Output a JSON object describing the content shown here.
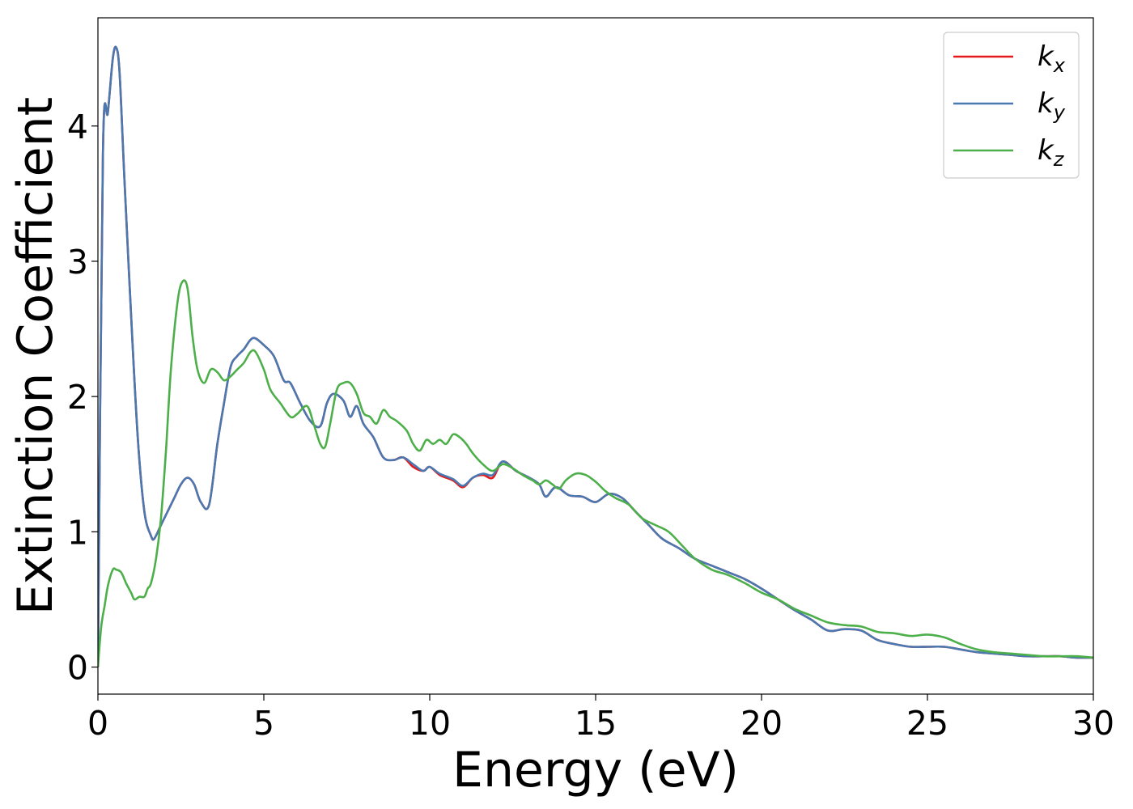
{
  "chart_data": {
    "type": "line",
    "xlabel": "Energy (eV)",
    "ylabel": "Extinction Coefficient",
    "xlim": [
      0,
      30
    ],
    "ylim": [
      -0.2,
      4.8
    ],
    "xticks": [
      "0",
      "5",
      "10",
      "15",
      "20",
      "25",
      "30"
    ],
    "yticks": [
      "0",
      "1",
      "2",
      "3",
      "4"
    ],
    "grid": false,
    "legend_position": "top-right",
    "series": [
      {
        "name": "k",
        "subscript": "x",
        "color": "#e41a1c",
        "x": [
          0,
          0.15,
          0.3,
          0.45,
          0.55,
          0.65,
          0.8,
          1.0,
          1.2,
          1.4,
          1.6,
          1.7,
          1.9,
          2.1,
          2.3,
          2.5,
          2.7,
          2.9,
          3.1,
          3.35,
          3.6,
          3.8,
          4.0,
          4.2,
          4.4,
          4.6,
          4.75,
          5.0,
          5.3,
          5.6,
          5.8,
          6.1,
          6.4,
          6.7,
          6.9,
          7.1,
          7.4,
          7.6,
          7.8,
          8.0,
          8.3,
          8.6,
          8.9,
          9.2,
          9.5,
          9.8,
          10.0,
          10.3,
          10.7,
          11.0,
          11.3,
          11.6,
          11.9,
          12.2,
          12.6,
          13.0,
          13.3,
          13.5,
          13.8,
          14.2,
          14.6,
          15.0,
          15.4,
          15.8,
          16.2,
          16.6,
          17.0,
          17.5,
          18.0,
          18.5,
          19.0,
          19.5,
          20.0,
          20.5,
          21.0,
          21.5,
          22.0,
          22.5,
          23.0,
          23.5,
          24.0,
          24.5,
          25.0,
          25.5,
          26.0,
          26.5,
          27.0,
          27.5,
          28.0,
          28.5,
          29.0,
          29.5,
          30.0
        ],
        "y": [
          0,
          3.8,
          4.1,
          4.5,
          4.58,
          4.4,
          3.6,
          2.6,
          1.7,
          1.15,
          0.97,
          0.95,
          1.05,
          1.15,
          1.25,
          1.35,
          1.4,
          1.35,
          1.22,
          1.2,
          1.65,
          1.95,
          2.22,
          2.3,
          2.35,
          2.42,
          2.43,
          2.38,
          2.3,
          2.12,
          2.1,
          1.95,
          1.82,
          1.78,
          1.95,
          2.02,
          1.97,
          1.85,
          1.93,
          1.8,
          1.7,
          1.55,
          1.53,
          1.55,
          1.48,
          1.45,
          1.48,
          1.42,
          1.38,
          1.33,
          1.4,
          1.42,
          1.4,
          1.52,
          1.45,
          1.4,
          1.35,
          1.26,
          1.33,
          1.27,
          1.26,
          1.22,
          1.28,
          1.25,
          1.15,
          1.05,
          0.95,
          0.88,
          0.8,
          0.75,
          0.7,
          0.65,
          0.58,
          0.5,
          0.42,
          0.35,
          0.27,
          0.28,
          0.27,
          0.2,
          0.17,
          0.15,
          0.15,
          0.15,
          0.13,
          0.11,
          0.1,
          0.09,
          0.08,
          0.08,
          0.08,
          0.07,
          0.07
        ]
      },
      {
        "name": "k",
        "subscript": "y",
        "color": "#4a78b0",
        "x": [
          0,
          0.15,
          0.3,
          0.45,
          0.55,
          0.65,
          0.8,
          1.0,
          1.2,
          1.4,
          1.6,
          1.7,
          1.9,
          2.1,
          2.3,
          2.5,
          2.7,
          2.9,
          3.1,
          3.35,
          3.6,
          3.8,
          4.0,
          4.2,
          4.4,
          4.6,
          4.75,
          5.0,
          5.3,
          5.6,
          5.8,
          6.1,
          6.4,
          6.7,
          6.9,
          7.1,
          7.4,
          7.6,
          7.8,
          8.0,
          8.3,
          8.6,
          8.9,
          9.2,
          9.5,
          9.8,
          10.0,
          10.3,
          10.7,
          11.0,
          11.3,
          11.6,
          11.9,
          12.2,
          12.6,
          13.0,
          13.3,
          13.5,
          13.8,
          14.2,
          14.6,
          15.0,
          15.4,
          15.8,
          16.2,
          16.6,
          17.0,
          17.5,
          18.0,
          18.5,
          19.0,
          19.5,
          20.0,
          20.5,
          21.0,
          21.5,
          22.0,
          22.5,
          23.0,
          23.5,
          24.0,
          24.5,
          25.0,
          25.5,
          26.0,
          26.5,
          27.0,
          27.5,
          28.0,
          28.5,
          29.0,
          29.5,
          30.0
        ],
        "y": [
          0,
          3.8,
          4.1,
          4.5,
          4.58,
          4.4,
          3.6,
          2.6,
          1.7,
          1.15,
          0.97,
          0.95,
          1.05,
          1.15,
          1.25,
          1.35,
          1.4,
          1.35,
          1.22,
          1.2,
          1.65,
          1.95,
          2.22,
          2.3,
          2.35,
          2.42,
          2.43,
          2.38,
          2.3,
          2.12,
          2.1,
          1.95,
          1.82,
          1.78,
          1.95,
          2.02,
          1.97,
          1.85,
          1.93,
          1.8,
          1.7,
          1.55,
          1.53,
          1.55,
          1.5,
          1.45,
          1.48,
          1.43,
          1.39,
          1.34,
          1.4,
          1.43,
          1.42,
          1.52,
          1.45,
          1.4,
          1.35,
          1.26,
          1.33,
          1.27,
          1.26,
          1.22,
          1.28,
          1.25,
          1.15,
          1.05,
          0.95,
          0.88,
          0.8,
          0.75,
          0.7,
          0.65,
          0.58,
          0.5,
          0.42,
          0.35,
          0.27,
          0.28,
          0.27,
          0.2,
          0.17,
          0.15,
          0.15,
          0.15,
          0.13,
          0.11,
          0.1,
          0.09,
          0.08,
          0.08,
          0.08,
          0.07,
          0.07
        ]
      },
      {
        "name": "k",
        "subscript": "z",
        "color": "#4daf4a",
        "x": [
          0,
          0.1,
          0.2,
          0.3,
          0.45,
          0.55,
          0.7,
          0.85,
          1.0,
          1.1,
          1.25,
          1.4,
          1.5,
          1.6,
          1.75,
          1.9,
          2.05,
          2.2,
          2.4,
          2.55,
          2.7,
          2.85,
          3.0,
          3.2,
          3.4,
          3.6,
          3.8,
          4.0,
          4.2,
          4.4,
          4.6,
          4.75,
          5.0,
          5.2,
          5.5,
          5.8,
          6.0,
          6.3,
          6.5,
          6.7,
          6.85,
          7.0,
          7.2,
          7.4,
          7.6,
          7.8,
          8.0,
          8.2,
          8.4,
          8.6,
          8.8,
          9.0,
          9.3,
          9.5,
          9.7,
          9.9,
          10.1,
          10.3,
          10.5,
          10.7,
          10.9,
          11.1,
          11.3,
          11.6,
          11.9,
          12.2,
          12.5,
          12.8,
          13.1,
          13.3,
          13.5,
          13.7,
          13.9,
          14.1,
          14.4,
          14.7,
          15.0,
          15.3,
          15.6,
          16.0,
          16.4,
          16.8,
          17.2,
          17.6,
          18.0,
          18.5,
          19.0,
          19.5,
          20.0,
          20.5,
          21.0,
          21.5,
          22.0,
          22.5,
          23.0,
          23.5,
          24.0,
          24.5,
          25.0,
          25.5,
          26.0,
          26.5,
          27.0,
          27.5,
          28.0,
          28.5,
          29.0,
          29.5,
          30.0
        ],
        "y": [
          0,
          0.3,
          0.45,
          0.6,
          0.72,
          0.72,
          0.7,
          0.62,
          0.55,
          0.5,
          0.52,
          0.52,
          0.58,
          0.62,
          0.8,
          1.1,
          1.6,
          2.2,
          2.7,
          2.85,
          2.8,
          2.45,
          2.2,
          2.1,
          2.2,
          2.18,
          2.12,
          2.15,
          2.2,
          2.25,
          2.33,
          2.33,
          2.2,
          2.05,
          1.95,
          1.85,
          1.87,
          1.93,
          1.8,
          1.65,
          1.63,
          1.8,
          2.05,
          2.1,
          2.1,
          2.02,
          1.88,
          1.85,
          1.8,
          1.9,
          1.85,
          1.82,
          1.75,
          1.65,
          1.6,
          1.68,
          1.65,
          1.68,
          1.65,
          1.72,
          1.7,
          1.65,
          1.58,
          1.5,
          1.45,
          1.5,
          1.47,
          1.42,
          1.38,
          1.35,
          1.38,
          1.35,
          1.32,
          1.38,
          1.43,
          1.42,
          1.37,
          1.3,
          1.25,
          1.2,
          1.1,
          1.05,
          1.0,
          0.9,
          0.8,
          0.72,
          0.68,
          0.62,
          0.55,
          0.5,
          0.43,
          0.38,
          0.33,
          0.31,
          0.3,
          0.26,
          0.25,
          0.23,
          0.24,
          0.22,
          0.17,
          0.13,
          0.11,
          0.1,
          0.09,
          0.08,
          0.08,
          0.08,
          0.07
        ]
      }
    ]
  }
}
